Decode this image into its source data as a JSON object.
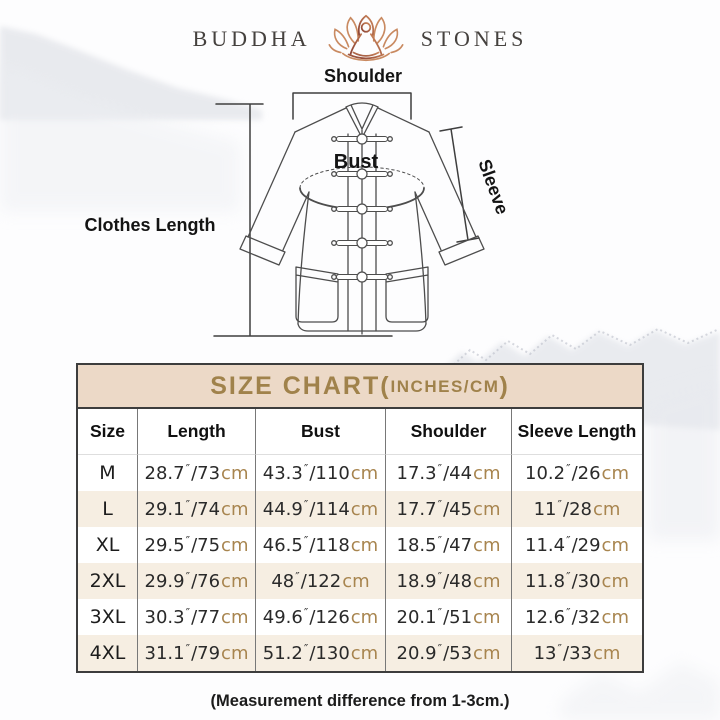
{
  "brand": {
    "left": "BUDDHA",
    "right": "STONES"
  },
  "diagram": {
    "labels": {
      "shoulder": "Shoulder",
      "bust": "Bust",
      "sleeve": "Sleeve",
      "clothes_length": "Clothes Length"
    }
  },
  "size_chart": {
    "title_main": "SIZE CHART(",
    "title_small": "INCHES/CM",
    "title_close": ")",
    "inch_mark": "″",
    "slash": "/",
    "unit_suffix": "cm",
    "columns": [
      "Size",
      "Length",
      "Bust",
      "Shoulder",
      "Sleeve Length"
    ],
    "rows": [
      {
        "size": "M",
        "cells": [
          {
            "in": "28.7",
            "cm": "73"
          },
          {
            "in": "43.3",
            "cm": "110"
          },
          {
            "in": "17.3",
            "cm": "44"
          },
          {
            "in": "10.2",
            "cm": "26"
          }
        ]
      },
      {
        "size": "L",
        "cells": [
          {
            "in": "29.1",
            "cm": "74"
          },
          {
            "in": "44.9",
            "cm": "114"
          },
          {
            "in": "17.7",
            "cm": "45"
          },
          {
            "in": "11",
            "cm": "28"
          }
        ]
      },
      {
        "size": "XL",
        "cells": [
          {
            "in": "29.5",
            "cm": "75"
          },
          {
            "in": "46.5",
            "cm": "118"
          },
          {
            "in": "18.5",
            "cm": "47"
          },
          {
            "in": "11.4",
            "cm": "29"
          }
        ]
      },
      {
        "size": "2XL",
        "cells": [
          {
            "in": "29.9",
            "cm": "76"
          },
          {
            "in": "48",
            "cm": "122"
          },
          {
            "in": "18.9",
            "cm": "48"
          },
          {
            "in": "11.8",
            "cm": "30"
          }
        ]
      },
      {
        "size": "3XL",
        "cells": [
          {
            "in": "30.3",
            "cm": "77"
          },
          {
            "in": "49.6",
            "cm": "126"
          },
          {
            "in": "20.1",
            "cm": "51"
          },
          {
            "in": "12.6",
            "cm": "32"
          }
        ]
      },
      {
        "size": "4XL",
        "cells": [
          {
            "in": "31.1",
            "cm": "79"
          },
          {
            "in": "51.2",
            "cm": "130"
          },
          {
            "in": "20.9",
            "cm": "53"
          },
          {
            "in": "13",
            "cm": "33"
          }
        ]
      }
    ]
  },
  "footer": {
    "note": "(Measurement difference from 1-3cm.)"
  },
  "colors": {
    "title_gold": "#a0824b",
    "title_band": "#ecd9c7",
    "row_stripe": "#f6eee2",
    "cm_text": "#a8854f",
    "logo_brown_dark": "#8a4133",
    "logo_brown_light": "#cf8a5e",
    "line_art": "#4d4d4d"
  }
}
